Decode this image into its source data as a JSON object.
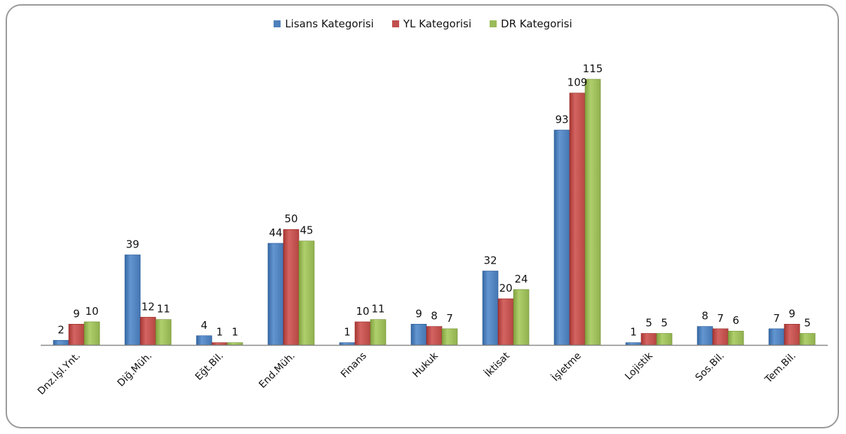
{
  "chart_data": {
    "type": "bar",
    "title": "",
    "xlabel": "",
    "ylabel": "",
    "ylim": [
      0,
      125
    ],
    "grid": false,
    "legend_position": "top",
    "categories": [
      "Dnz.İşl.Ynt.",
      "Diğ.Müh.",
      "Eğt.Bil.",
      "End.Müh.",
      "Finans",
      "Hukuk",
      "İktisat",
      "İşletme",
      "Lojistik",
      "Sos.Bil.",
      "Tem.Bil."
    ],
    "series": [
      {
        "name": "Lisans Kategorisi",
        "color": "#4f81bd",
        "values": [
          2,
          39,
          4,
          44,
          1,
          9,
          32,
          93,
          1,
          8,
          7
        ]
      },
      {
        "name": "YL Kategorisi",
        "color": "#c0504d",
        "values": [
          9,
          12,
          1,
          50,
          10,
          8,
          20,
          109,
          5,
          7,
          9
        ]
      },
      {
        "name": "DR Kategorisi",
        "color": "#9bbb59",
        "values": [
          10,
          11,
          1,
          45,
          11,
          7,
          24,
          115,
          5,
          6,
          5
        ]
      }
    ]
  }
}
